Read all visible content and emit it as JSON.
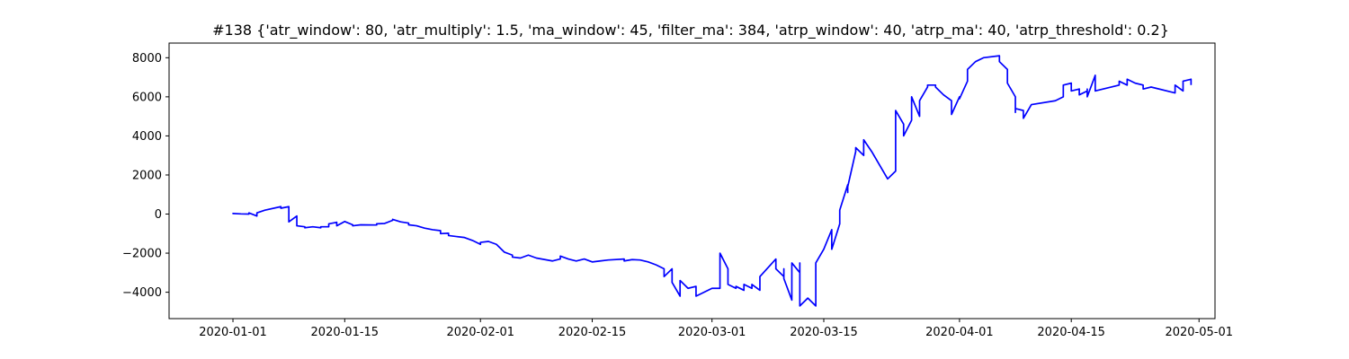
{
  "chart_data": {
    "type": "line",
    "title": "#138 {'atr_window': 80, 'atr_multiply': 1.5, 'ma_window': 45, 'filter_ma': 384, 'atrp_window': 40, 'atrp_ma': 40, 'atrp_threshold': 0.2}",
    "xlabel": "",
    "ylabel": "",
    "x_type": "date",
    "xlim": [
      "2019-12-24",
      "2020-05-03"
    ],
    "ylim": [
      -5350,
      8750
    ],
    "x_ticks": [
      "2020-01-01",
      "2020-01-15",
      "2020-02-01",
      "2020-02-15",
      "2020-03-01",
      "2020-03-15",
      "2020-04-01",
      "2020-04-15",
      "2020-05-01"
    ],
    "y_ticks": [
      -4000,
      -2000,
      0,
      2000,
      4000,
      6000,
      8000
    ],
    "y_tick_labels": [
      "−4000",
      "−2000",
      "0",
      "2000",
      "4000",
      "6000",
      "8000"
    ],
    "grid": false,
    "legend": "none",
    "colors": {
      "line": "#0000ff",
      "axes": "#000000",
      "background": "#ffffff"
    },
    "series": [
      {
        "x": [
          "2020-01-01",
          "2020-01-01",
          "2020-01-02",
          "2020-01-03",
          "2020-01-03",
          "2020-01-04",
          "2020-01-04",
          "2020-01-05",
          "2020-01-07",
          "2020-01-07",
          "2020-01-08",
          "2020-01-08",
          "2020-01-08",
          "2020-01-09",
          "2020-01-09",
          "2020-01-09",
          "2020-01-10",
          "2020-01-10",
          "2020-01-11",
          "2020-01-12",
          "2020-01-12",
          "2020-01-13",
          "2020-01-13",
          "2020-01-14",
          "2020-01-14",
          "2020-01-15",
          "2020-01-16",
          "2020-01-16",
          "2020-01-17",
          "2020-01-19",
          "2020-01-19",
          "2020-01-20",
          "2020-01-21",
          "2020-01-21",
          "2020-01-22",
          "2020-01-23",
          "2020-01-23",
          "2020-01-24",
          "2020-01-25",
          "2020-01-26",
          "2020-01-27",
          "2020-01-27",
          "2020-01-28",
          "2020-01-28",
          "2020-01-29",
          "2020-01-30",
          "2020-01-31",
          "2020-02-01",
          "2020-02-01",
          "2020-02-02",
          "2020-02-03",
          "2020-02-04",
          "2020-02-05",
          "2020-02-05",
          "2020-02-06",
          "2020-02-07",
          "2020-02-08",
          "2020-02-10",
          "2020-02-11",
          "2020-02-11",
          "2020-02-12",
          "2020-02-13",
          "2020-02-14",
          "2020-02-15",
          "2020-02-16",
          "2020-02-17",
          "2020-02-19",
          "2020-02-19",
          "2020-02-20",
          "2020-02-21",
          "2020-02-22",
          "2020-02-23",
          "2020-02-24",
          "2020-02-24",
          "2020-02-25",
          "2020-02-25",
          "2020-02-26",
          "2020-02-26",
          "2020-02-27",
          "2020-02-28",
          "2020-02-28",
          "2020-03-01",
          "2020-03-02",
          "2020-03-02",
          "2020-03-03",
          "2020-03-03",
          "2020-03-03",
          "2020-03-04",
          "2020-03-04",
          "2020-03-05",
          "2020-03-05",
          "2020-03-06",
          "2020-03-06",
          "2020-03-07",
          "2020-03-07",
          "2020-03-07",
          "2020-03-09",
          "2020-03-09",
          "2020-03-10",
          "2020-03-10",
          "2020-03-10",
          "2020-03-11",
          "2020-03-11",
          "2020-03-11",
          "2020-03-12",
          "2020-03-12",
          "2020-03-12",
          "2020-03-12",
          "2020-03-13",
          "2020-03-14",
          "2020-03-14",
          "2020-03-15",
          "2020-03-16",
          "2020-03-16",
          "2020-03-17",
          "2020-03-17",
          "2020-03-18",
          "2020-03-18",
          "2020-03-18",
          "2020-03-19",
          "2020-03-19",
          "2020-03-20",
          "2020-03-20",
          "2020-03-21",
          "2020-03-22",
          "2020-03-23",
          "2020-03-24",
          "2020-03-24",
          "2020-03-24",
          "2020-03-25",
          "2020-03-25",
          "2020-03-26",
          "2020-03-26",
          "2020-03-26",
          "2020-03-27",
          "2020-03-27",
          "2020-03-28",
          "2020-03-28",
          "2020-03-29",
          "2020-03-29",
          "2020-03-30",
          "2020-03-31",
          "2020-03-31",
          "2020-04-01",
          "2020-04-01",
          "2020-04-02",
          "2020-04-02",
          "2020-04-03",
          "2020-04-04",
          "2020-04-06",
          "2020-04-06",
          "2020-04-07",
          "2020-04-07",
          "2020-04-08",
          "2020-04-08",
          "2020-04-08",
          "2020-04-09",
          "2020-04-09",
          "2020-04-10",
          "2020-04-10",
          "2020-04-13",
          "2020-04-14",
          "2020-04-14",
          "2020-04-15",
          "2020-04-15",
          "2020-04-16",
          "2020-04-16",
          "2020-04-17",
          "2020-04-17",
          "2020-04-17",
          "2020-04-18",
          "2020-04-18",
          "2020-04-21",
          "2020-04-21",
          "2020-04-22",
          "2020-04-22",
          "2020-04-23",
          "2020-04-24",
          "2020-04-24",
          "2020-04-25",
          "2020-04-28",
          "2020-04-28",
          "2020-04-29",
          "2020-04-29",
          "2020-04-30",
          "2020-04-30"
        ],
        "y": [
          0,
          30,
          10,
          0,
          60,
          -100,
          60,
          200,
          380,
          300,
          380,
          200,
          -400,
          -100,
          -150,
          -600,
          -650,
          -700,
          -650,
          -700,
          -650,
          -650,
          -500,
          -420,
          -600,
          -380,
          -550,
          -600,
          -550,
          -560,
          -500,
          -480,
          -320,
          -270,
          -400,
          -460,
          -550,
          -600,
          -720,
          -800,
          -850,
          -1000,
          -980,
          -1100,
          -1150,
          -1200,
          -1350,
          -1550,
          -1450,
          -1400,
          -1550,
          -1950,
          -2100,
          -2200,
          -2250,
          -2100,
          -2250,
          -2400,
          -2300,
          -2150,
          -2300,
          -2400,
          -2300,
          -2450,
          -2400,
          -2350,
          -2300,
          -2400,
          -2330,
          -2350,
          -2450,
          -2600,
          -2800,
          -3200,
          -2800,
          -3500,
          -4200,
          -3400,
          -3800,
          -3700,
          -4200,
          -3800,
          -3800,
          -2000,
          -2800,
          -3400,
          -3600,
          -3800,
          -3700,
          -3900,
          -3600,
          -3800,
          -3600,
          -3900,
          -3600,
          -3200,
          -2300,
          -2800,
          -3200,
          -2800,
          -3300,
          -4400,
          -3000,
          -2500,
          -3000,
          -2500,
          -3500,
          -4700,
          -4300,
          -4700,
          -2500,
          -1800,
          -800,
          -1800,
          -500,
          200,
          1500,
          1100,
          1400,
          3200,
          3400,
          3000,
          3800,
          3200,
          2500,
          1800,
          2200,
          4200,
          5300,
          4600,
          4000,
          4800,
          5400,
          6000,
          5000,
          5800,
          6500,
          6600,
          6600,
          6500,
          6100,
          5800,
          5100,
          6000,
          5900,
          6800,
          7400,
          7800,
          8000,
          8100,
          7800,
          7400,
          6700,
          6000,
          5200,
          5400,
          5300,
          4900,
          5600,
          5600,
          5800,
          6000,
          6600,
          6700,
          6300,
          6400,
          6100,
          6300,
          6400,
          6000,
          7100,
          6300,
          6600,
          6800,
          6600,
          6900,
          6700,
          6600,
          6400,
          6500,
          6200,
          6600,
          6300,
          6800,
          6900,
          6600
        ]
      }
    ]
  }
}
